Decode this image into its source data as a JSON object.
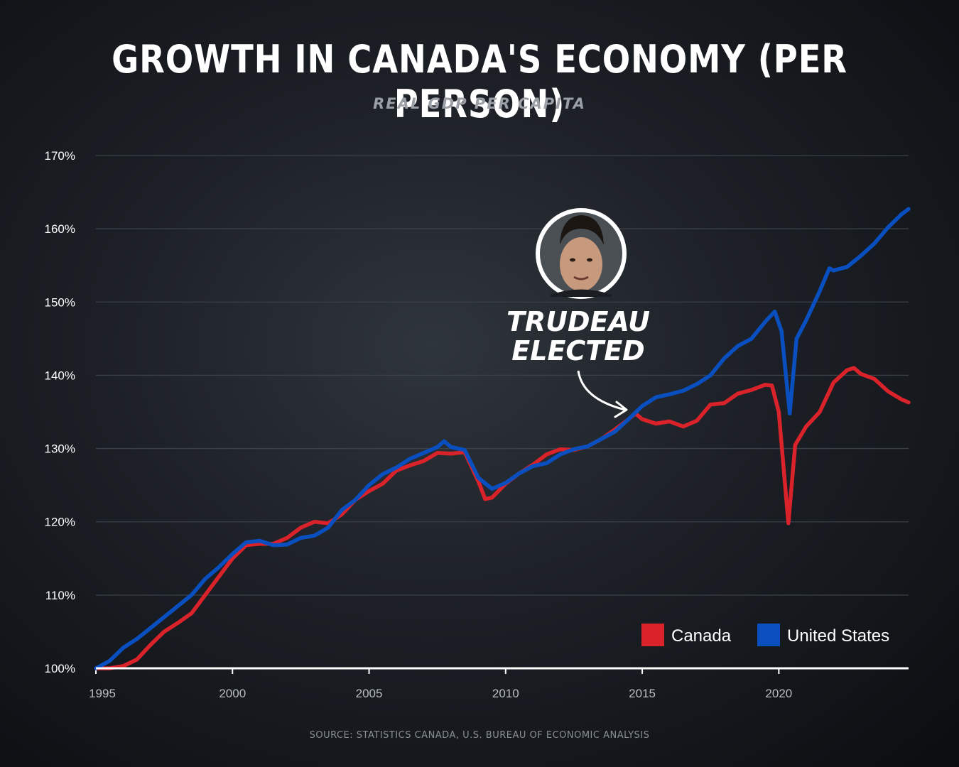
{
  "title": "GROWTH IN CANADA'S ECONOMY (PER PERSON)",
  "subtitle": "REAL GDP PER CAPITA",
  "source": "SOURCE: STATISTICS CANADA, U.S. BUREAU OF ECONOMIC ANALYSIS",
  "annotation": {
    "lines": [
      "TRUDEAU",
      "ELECTED"
    ],
    "x": 2015.8,
    "portrait_icon": "portrait-photo-icon"
  },
  "colors": {
    "canada": "#d9222a",
    "united_states": "#0a4fbf",
    "grid": "#3b4148",
    "axis": "#ffffff"
  },
  "chart_data": {
    "type": "line",
    "title": "GROWTH IN CANADA'S ECONOMY (PER PERSON)",
    "subtitle": "REAL GDP PER CAPITA",
    "xlabel": "",
    "ylabel": "",
    "xlim": [
      1995,
      2024.75
    ],
    "ylim": [
      100,
      170
    ],
    "x_ticks": [
      "1995",
      "2000",
      "2005",
      "2010",
      "2015",
      "2020"
    ],
    "x_tick_values": [
      1995,
      2000,
      2005,
      2010,
      2015,
      2020
    ],
    "y_ticks": [
      "100%",
      "110%",
      "120%",
      "130%",
      "140%",
      "150%",
      "160%",
      "170%"
    ],
    "y_tick_values": [
      100,
      110,
      120,
      130,
      140,
      150,
      160,
      170
    ],
    "grid": true,
    "legend": "bottom-right",
    "series": [
      {
        "name": "Canada",
        "color": "#d9222a",
        "points": [
          [
            1995.0,
            99.8
          ],
          [
            1995.5,
            99.8
          ],
          [
            1996.0,
            100.3
          ],
          [
            1996.5,
            101.2
          ],
          [
            1997.0,
            103.2
          ],
          [
            1997.5,
            105.0
          ],
          [
            1998.0,
            106.2
          ],
          [
            1998.5,
            107.5
          ],
          [
            1999.0,
            110.0
          ],
          [
            1999.5,
            112.5
          ],
          [
            2000.0,
            115.0
          ],
          [
            2000.5,
            116.8
          ],
          [
            2001.0,
            117.0
          ],
          [
            2001.5,
            117.0
          ],
          [
            2002.0,
            117.8
          ],
          [
            2002.5,
            119.2
          ],
          [
            2003.0,
            120.0
          ],
          [
            2003.5,
            119.8
          ],
          [
            2004.0,
            121.0
          ],
          [
            2004.5,
            123.0
          ],
          [
            2005.0,
            124.2
          ],
          [
            2005.5,
            125.2
          ],
          [
            2006.0,
            127.0
          ],
          [
            2006.5,
            127.7
          ],
          [
            2007.0,
            128.3
          ],
          [
            2007.5,
            129.4
          ],
          [
            2008.0,
            129.3
          ],
          [
            2008.5,
            129.5
          ],
          [
            2009.0,
            125.5
          ],
          [
            2009.25,
            123.1
          ],
          [
            2009.5,
            123.3
          ],
          [
            2010.0,
            125.2
          ],
          [
            2010.5,
            126.6
          ],
          [
            2011.0,
            127.8
          ],
          [
            2011.5,
            129.2
          ],
          [
            2012.0,
            129.9
          ],
          [
            2012.5,
            129.8
          ],
          [
            2013.0,
            130.3
          ],
          [
            2013.5,
            131.3
          ],
          [
            2014.0,
            132.6
          ],
          [
            2014.5,
            134.0
          ],
          [
            2014.75,
            134.8
          ],
          [
            2015.0,
            134.0
          ],
          [
            2015.5,
            133.4
          ],
          [
            2016.0,
            133.7
          ],
          [
            2016.5,
            133.0
          ],
          [
            2017.0,
            133.8
          ],
          [
            2017.5,
            136.0
          ],
          [
            2018.0,
            136.2
          ],
          [
            2018.5,
            137.5
          ],
          [
            2019.0,
            138.0
          ],
          [
            2019.5,
            138.7
          ],
          [
            2019.75,
            138.6
          ],
          [
            2020.0,
            135.0
          ],
          [
            2020.35,
            119.8
          ],
          [
            2020.6,
            130.5
          ],
          [
            2021.0,
            133.0
          ],
          [
            2021.5,
            135.0
          ],
          [
            2022.0,
            139.0
          ],
          [
            2022.5,
            140.7
          ],
          [
            2022.75,
            141.0
          ],
          [
            2023.0,
            140.2
          ],
          [
            2023.5,
            139.5
          ],
          [
            2024.0,
            137.8
          ],
          [
            2024.5,
            136.7
          ],
          [
            2024.75,
            136.3
          ]
        ]
      },
      {
        "name": "United States",
        "color": "#0a4fbf",
        "points": [
          [
            1995.0,
            100.0
          ],
          [
            1995.5,
            101.0
          ],
          [
            1996.0,
            102.8
          ],
          [
            1996.5,
            104.0
          ],
          [
            1997.0,
            105.5
          ],
          [
            1997.5,
            107.0
          ],
          [
            1998.0,
            108.5
          ],
          [
            1998.5,
            110.0
          ],
          [
            1999.0,
            112.2
          ],
          [
            1999.5,
            113.8
          ],
          [
            2000.0,
            115.6
          ],
          [
            2000.5,
            117.2
          ],
          [
            2001.0,
            117.4
          ],
          [
            2001.5,
            116.8
          ],
          [
            2002.0,
            116.9
          ],
          [
            2002.5,
            117.8
          ],
          [
            2003.0,
            118.1
          ],
          [
            2003.5,
            119.2
          ],
          [
            2004.0,
            121.6
          ],
          [
            2004.5,
            123.0
          ],
          [
            2005.0,
            125.0
          ],
          [
            2005.5,
            126.5
          ],
          [
            2006.0,
            127.4
          ],
          [
            2006.5,
            128.6
          ],
          [
            2007.0,
            129.4
          ],
          [
            2007.5,
            130.2
          ],
          [
            2007.75,
            131.0
          ],
          [
            2008.0,
            130.2
          ],
          [
            2008.5,
            129.8
          ],
          [
            2009.0,
            126.0
          ],
          [
            2009.5,
            124.5
          ],
          [
            2010.0,
            125.3
          ],
          [
            2010.5,
            126.6
          ],
          [
            2011.0,
            127.6
          ],
          [
            2011.5,
            128.0
          ],
          [
            2012.0,
            129.2
          ],
          [
            2012.5,
            129.9
          ],
          [
            2013.0,
            130.3
          ],
          [
            2013.5,
            131.3
          ],
          [
            2014.0,
            132.3
          ],
          [
            2014.5,
            134.0
          ],
          [
            2015.0,
            135.8
          ],
          [
            2015.5,
            137.0
          ],
          [
            2016.0,
            137.4
          ],
          [
            2016.5,
            137.9
          ],
          [
            2017.0,
            138.8
          ],
          [
            2017.5,
            140.0
          ],
          [
            2018.0,
            142.3
          ],
          [
            2018.5,
            144.0
          ],
          [
            2019.0,
            145.0
          ],
          [
            2019.5,
            147.3
          ],
          [
            2019.85,
            148.7
          ],
          [
            2020.1,
            146.0
          ],
          [
            2020.4,
            134.8
          ],
          [
            2020.65,
            145.0
          ],
          [
            2021.0,
            147.5
          ],
          [
            2021.5,
            151.5
          ],
          [
            2021.85,
            154.6
          ],
          [
            2022.0,
            154.3
          ],
          [
            2022.5,
            154.8
          ],
          [
            2023.0,
            156.3
          ],
          [
            2023.5,
            158.0
          ],
          [
            2024.0,
            160.2
          ],
          [
            2024.5,
            162.0
          ],
          [
            2024.75,
            162.7
          ]
        ]
      }
    ]
  }
}
